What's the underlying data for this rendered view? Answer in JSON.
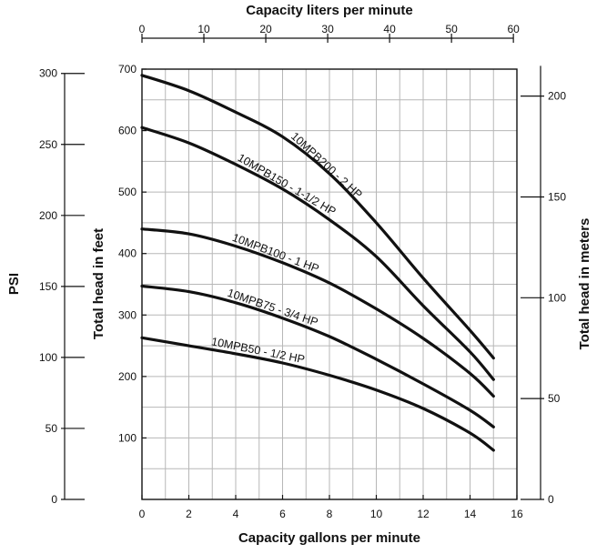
{
  "chart_data": {
    "type": "line",
    "xlabel": "Capacity gallons per minute",
    "ylabel": "Total head in feet",
    "top_xlabel": "Capacity liters per minute",
    "left_ylabel": "PSI",
    "right_ylabel": "Total head in meters",
    "xlim": [
      0,
      16
    ],
    "ylim": [
      0,
      700
    ],
    "x_ticks": [
      0,
      2,
      4,
      6,
      8,
      10,
      12,
      14,
      16
    ],
    "y_ticks": [
      100,
      200,
      300,
      400,
      500,
      600,
      700
    ],
    "top_x_ticks": [
      0,
      10,
      20,
      30,
      40,
      50,
      60
    ],
    "psi_ticks": [
      0,
      50,
      100,
      150,
      200,
      250,
      300
    ],
    "meter_ticks": [
      0,
      50,
      100,
      150,
      200
    ],
    "grid": true,
    "series": [
      {
        "name": "10MPB200 - 2 HP",
        "x": [
          0,
          2,
          4,
          6,
          8,
          10,
          12,
          14,
          15
        ],
        "values": [
          690,
          665,
          630,
          590,
          530,
          450,
          360,
          275,
          230
        ]
      },
      {
        "name": "10MPB150 - 1-1/2 HP",
        "x": [
          0,
          2,
          4,
          6,
          8,
          10,
          12,
          14,
          15
        ],
        "values": [
          605,
          580,
          545,
          505,
          455,
          395,
          315,
          240,
          195
        ]
      },
      {
        "name": "10MPB100 - 1 HP",
        "x": [
          0,
          2,
          4,
          6,
          8,
          10,
          12,
          14,
          15
        ],
        "values": [
          440,
          432,
          412,
          385,
          352,
          310,
          262,
          205,
          168
        ]
      },
      {
        "name": "10MPB75 - 3/4 HP",
        "x": [
          0,
          2,
          4,
          6,
          8,
          10,
          12,
          14,
          15
        ],
        "values": [
          347,
          338,
          320,
          295,
          265,
          228,
          188,
          145,
          118
        ]
      },
      {
        "name": "10MPB50 - 1/2 HP",
        "x": [
          0,
          2,
          4,
          6,
          8,
          10,
          12,
          14,
          15
        ],
        "values": [
          263,
          250,
          237,
          222,
          202,
          178,
          148,
          108,
          80
        ]
      }
    ]
  }
}
